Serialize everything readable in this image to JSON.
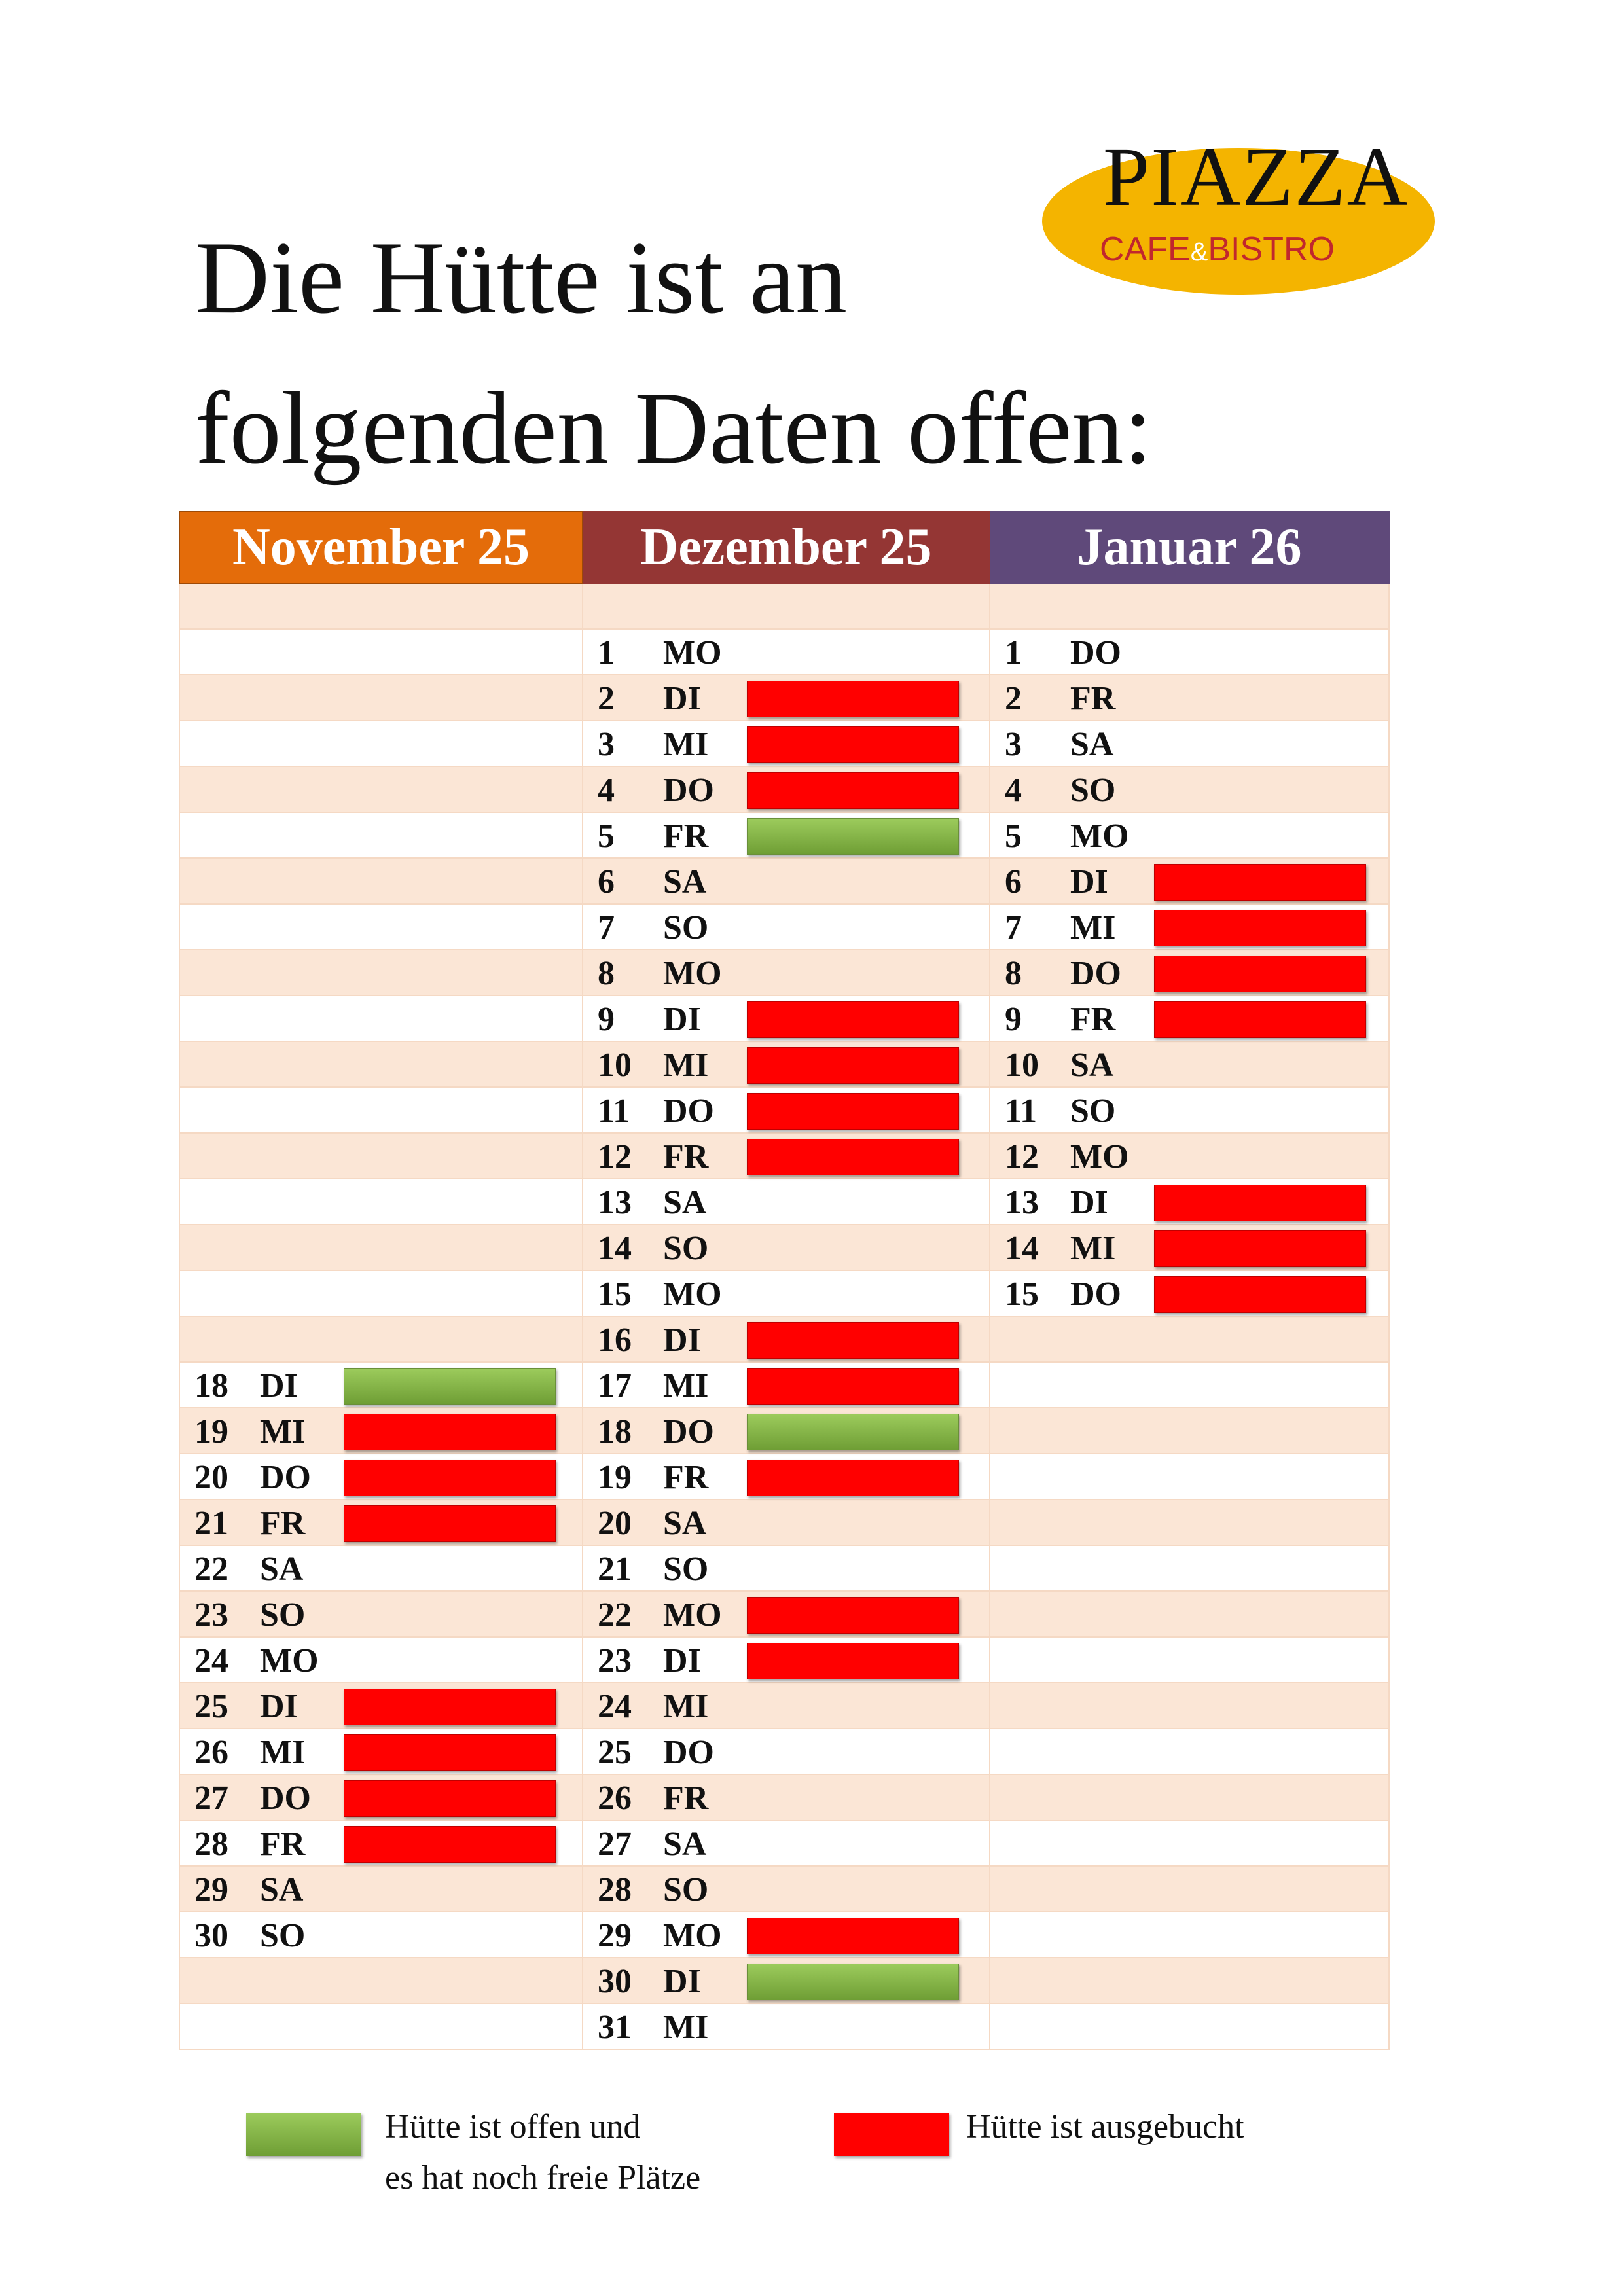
{
  "header": {
    "title_line1": "Die Hütte ist an",
    "title_line2": "folgenden Daten offen:",
    "logo_main": "PIAZZA",
    "logo_sub_left": "CAFE",
    "logo_sub_amp": "&",
    "logo_sub_right": "BISTRO"
  },
  "colors": {
    "november": "#e46c0a",
    "dezember": "#943634",
    "januar": "#5f497a",
    "booked": "#ff0000",
    "open": "#7fae3f",
    "row_alt": "#fbe6d6",
    "logo_yellow": "#f4b400"
  },
  "months": [
    "November 25",
    "Dezember 25",
    "Januar 26"
  ],
  "calendar": {
    "november": [
      {
        "day": "18",
        "dow": "DI",
        "status": "open"
      },
      {
        "day": "19",
        "dow": "MI",
        "status": "booked"
      },
      {
        "day": "20",
        "dow": "DO",
        "status": "booked"
      },
      {
        "day": "21",
        "dow": "FR",
        "status": "booked"
      },
      {
        "day": "22",
        "dow": "SA",
        "status": "none"
      },
      {
        "day": "23",
        "dow": "SO",
        "status": "none"
      },
      {
        "day": "24",
        "dow": "MO",
        "status": "none"
      },
      {
        "day": "25",
        "dow": "DI",
        "status": "booked"
      },
      {
        "day": "26",
        "dow": "MI",
        "status": "booked"
      },
      {
        "day": "27",
        "dow": "DO",
        "status": "booked"
      },
      {
        "day": "28",
        "dow": "FR",
        "status": "booked"
      },
      {
        "day": "29",
        "dow": "SA",
        "status": "none"
      },
      {
        "day": "30",
        "dow": "SO",
        "status": "none"
      }
    ],
    "dezember": [
      {
        "day": "1",
        "dow": "MO",
        "status": "none"
      },
      {
        "day": "2",
        "dow": "DI",
        "status": "booked"
      },
      {
        "day": "3",
        "dow": "MI",
        "status": "booked"
      },
      {
        "day": "4",
        "dow": "DO",
        "status": "booked"
      },
      {
        "day": "5",
        "dow": "FR",
        "status": "open"
      },
      {
        "day": "6",
        "dow": "SA",
        "status": "none"
      },
      {
        "day": "7",
        "dow": "SO",
        "status": "none"
      },
      {
        "day": "8",
        "dow": "MO",
        "status": "none"
      },
      {
        "day": "9",
        "dow": "DI",
        "status": "booked"
      },
      {
        "day": "10",
        "dow": "MI",
        "status": "booked"
      },
      {
        "day": "11",
        "dow": "DO",
        "status": "booked"
      },
      {
        "day": "12",
        "dow": "FR",
        "status": "booked"
      },
      {
        "day": "13",
        "dow": "SA",
        "status": "none"
      },
      {
        "day": "14",
        "dow": "SO",
        "status": "none"
      },
      {
        "day": "15",
        "dow": "MO",
        "status": "none"
      },
      {
        "day": "16",
        "dow": "DI",
        "status": "booked"
      },
      {
        "day": "17",
        "dow": "MI",
        "status": "booked"
      },
      {
        "day": "18",
        "dow": "DO",
        "status": "open"
      },
      {
        "day": "19",
        "dow": "FR",
        "status": "booked"
      },
      {
        "day": "20",
        "dow": "SA",
        "status": "none"
      },
      {
        "day": "21",
        "dow": "SO",
        "status": "none"
      },
      {
        "day": "22",
        "dow": "MO",
        "status": "booked"
      },
      {
        "day": "23",
        "dow": "DI",
        "status": "booked"
      },
      {
        "day": "24",
        "dow": "MI",
        "status": "none"
      },
      {
        "day": "25",
        "dow": "DO",
        "status": "none"
      },
      {
        "day": "26",
        "dow": "FR",
        "status": "none"
      },
      {
        "day": "27",
        "dow": "SA",
        "status": "none"
      },
      {
        "day": "28",
        "dow": "SO",
        "status": "none"
      },
      {
        "day": "29",
        "dow": "MO",
        "status": "booked"
      },
      {
        "day": "30",
        "dow": "DI",
        "status": "open"
      },
      {
        "day": "31",
        "dow": "MI",
        "status": "none"
      }
    ],
    "januar": [
      {
        "day": "1",
        "dow": "DO",
        "status": "none"
      },
      {
        "day": "2",
        "dow": "FR",
        "status": "none"
      },
      {
        "day": "3",
        "dow": "SA",
        "status": "none"
      },
      {
        "day": "4",
        "dow": "SO",
        "status": "none"
      },
      {
        "day": "5",
        "dow": "MO",
        "status": "none"
      },
      {
        "day": "6",
        "dow": "DI",
        "status": "booked"
      },
      {
        "day": "7",
        "dow": "MI",
        "status": "booked"
      },
      {
        "day": "8",
        "dow": "DO",
        "status": "booked"
      },
      {
        "day": "9",
        "dow": "FR",
        "status": "booked"
      },
      {
        "day": "10",
        "dow": "SA",
        "status": "none"
      },
      {
        "day": "11",
        "dow": "SO",
        "status": "none"
      },
      {
        "day": "12",
        "dow": "MO",
        "status": "none"
      },
      {
        "day": "13",
        "dow": "DI",
        "status": "booked"
      },
      {
        "day": "14",
        "dow": "MI",
        "status": "booked"
      },
      {
        "day": "15",
        "dow": "DO",
        "status": "booked"
      }
    ]
  },
  "legend": {
    "open_line1": "Hütte ist offen und",
    "open_line2": "es hat noch freie Plätze",
    "booked": "Hütte ist ausgebucht"
  }
}
